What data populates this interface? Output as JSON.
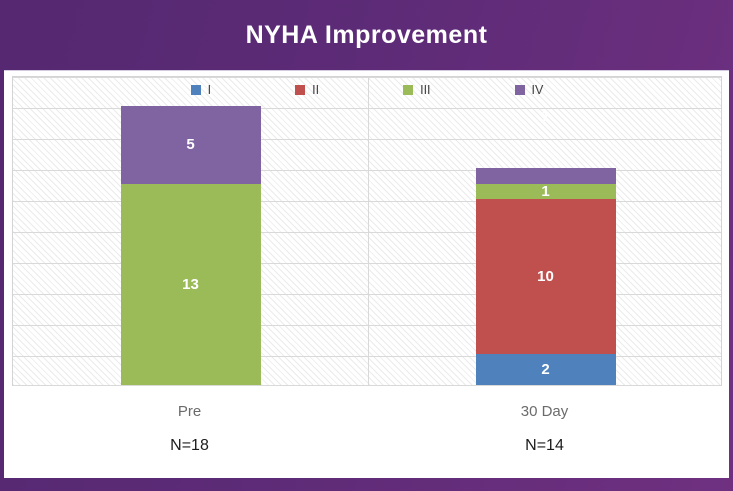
{
  "title": "NYHA Improvement",
  "colors": {
    "frame_purple_dark": "#552871",
    "frame_purple_light": "#6f3080",
    "panel_bg": "#ffffff",
    "gridline": "#d9d9d9",
    "hatch_stripe": "#e0e0e0",
    "legend_text": "#404040",
    "category_text": "#6b6b6b",
    "n_text": "#1c1c1c",
    "data_label_text": "#ffffff"
  },
  "legend": {
    "position": "top",
    "items": [
      {
        "label": "I",
        "color": "#4F81BD"
      },
      {
        "label": "II",
        "color": "#C0504D"
      },
      {
        "label": "III",
        "color": "#9BBB59"
      },
      {
        "label": "IV",
        "color": "#8064A2"
      }
    ]
  },
  "chart_data": {
    "type": "bar",
    "variant": "stacked-column",
    "title": "NYHA Improvement",
    "categories": [
      "Pre",
      "30 Day"
    ],
    "category_sublabels": [
      "N=18",
      "N=14"
    ],
    "series": [
      {
        "name": "I",
        "color": "#4F81BD",
        "values": [
          0,
          2
        ],
        "show_labels": [
          false,
          true
        ]
      },
      {
        "name": "II",
        "color": "#C0504D",
        "values": [
          0,
          10
        ],
        "show_labels": [
          false,
          true
        ]
      },
      {
        "name": "III",
        "color": "#9BBB59",
        "values": [
          13,
          1
        ],
        "show_labels": [
          true,
          true
        ]
      },
      {
        "name": "IV",
        "color": "#8064A2",
        "values": [
          5,
          1
        ],
        "show_labels": [
          true,
          false
        ]
      }
    ],
    "stack_order": "first-series-bottom",
    "ylim": [
      0,
      20
    ],
    "gridline_step": 2,
    "grid": true,
    "value_axis_labels_visible": false,
    "legend_position": "top",
    "floating_label": {
      "text": "1",
      "category_index": 1,
      "value_y": 17.5
    },
    "totals": [
      18,
      14
    ]
  }
}
